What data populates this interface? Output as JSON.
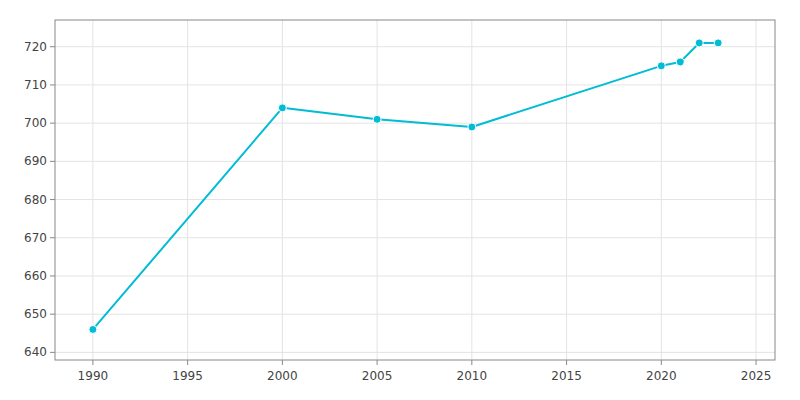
{
  "chart_data": {
    "type": "line",
    "x": [
      1990,
      2000,
      2005,
      2010,
      2020,
      2021,
      2022,
      2023
    ],
    "values": [
      646,
      704,
      701,
      699,
      715,
      716,
      721,
      721
    ],
    "color": "#00BCD4",
    "marker": "circle",
    "xlim": [
      1988,
      2026
    ],
    "ylim": [
      638,
      727
    ],
    "xticks": [
      1990,
      1995,
      2000,
      2005,
      2010,
      2015,
      2020,
      2025
    ],
    "yticks": [
      640,
      650,
      660,
      670,
      680,
      690,
      700,
      710,
      720
    ],
    "grid": true
  }
}
